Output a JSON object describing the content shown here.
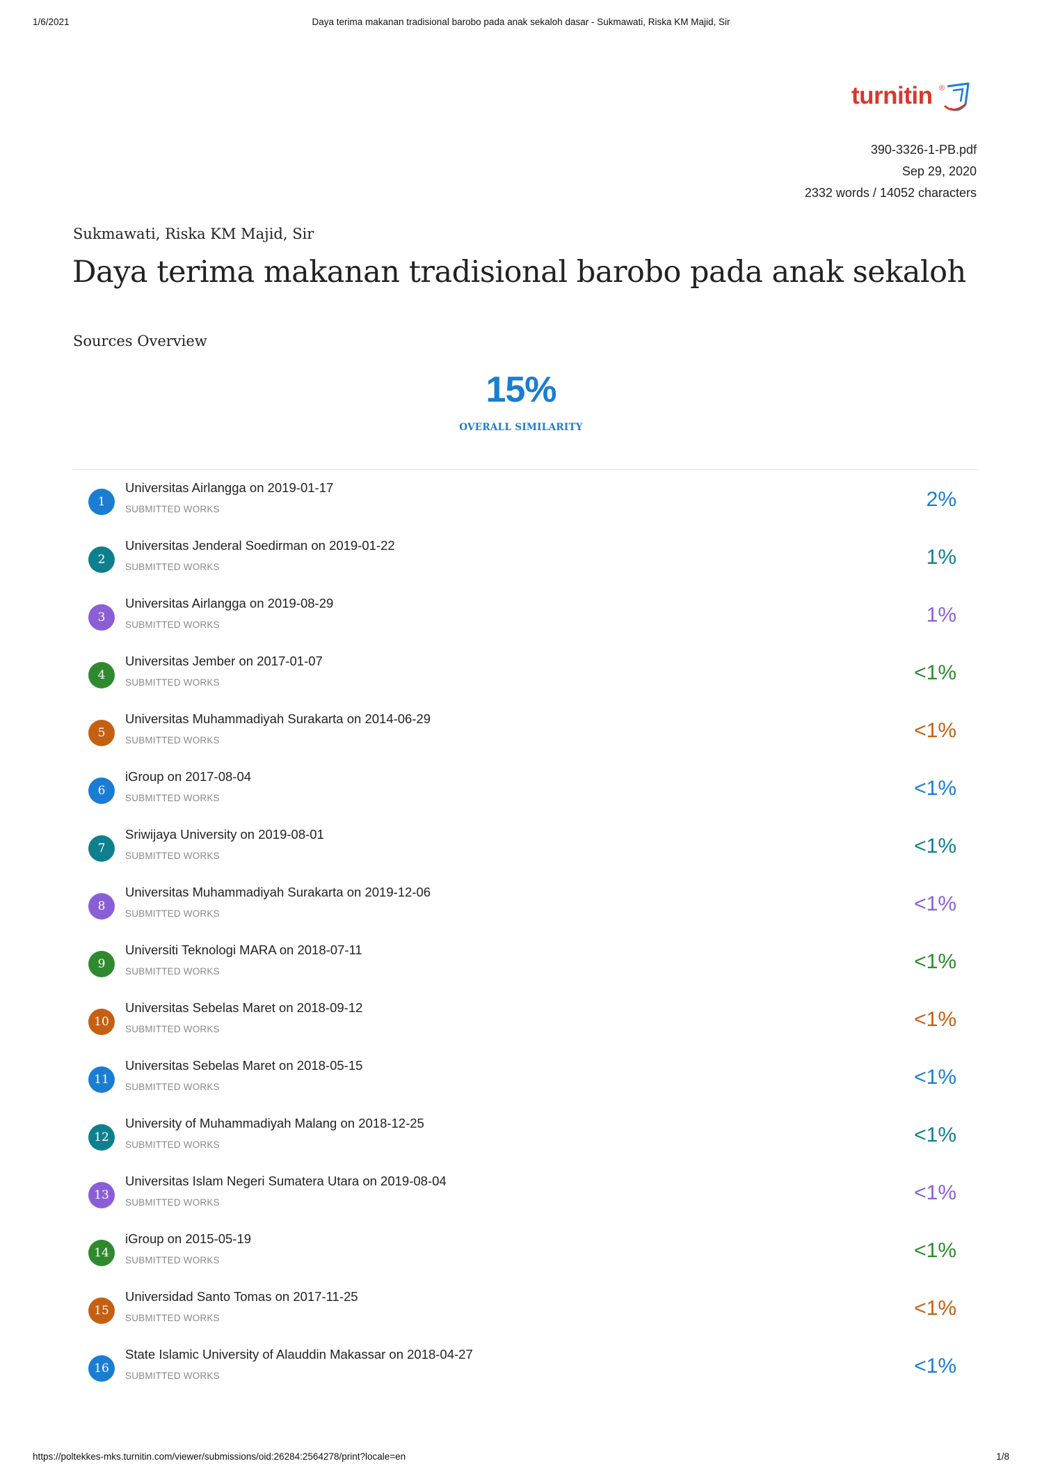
{
  "print_header": {
    "date": "1/6/2021",
    "title": "Daya terima makanan tradisional barobo pada anak sekaloh dasar - Sukmawati, Riska KM Majid, Sir"
  },
  "logo": {
    "text": "turnitin",
    "mark": "®"
  },
  "meta": {
    "filename": "390-3326-1-PB.pdf",
    "date": "Sep 29, 2020",
    "counts": "2332 words / 14052 characters"
  },
  "author": "Sukmawati, Riska KM Majid, Sir",
  "doc_title": "Daya terima makanan tradisional barobo pada anak sekaloh da...",
  "section_title": "Sources Overview",
  "overall": {
    "percent": "15%",
    "label": "OVERALL SIMILARITY",
    "color": "#1a7dd1"
  },
  "colors": {
    "blue": "#1a7dd1",
    "teal": "#0e7f8f",
    "purple": "#8a5fd6",
    "green": "#2f8a2f",
    "orange": "#c55f12",
    "logo_red": "#d9382c"
  },
  "sources": [
    {
      "num": "1",
      "name": "Universitas Airlangga on 2019-01-17",
      "type": "SUBMITTED WORKS",
      "percent": "2%",
      "color": "#1a7dd1"
    },
    {
      "num": "2",
      "name": "Universitas Jenderal Soedirman on 2019-01-22",
      "type": "SUBMITTED WORKS",
      "percent": "1%",
      "color": "#0e7f8f"
    },
    {
      "num": "3",
      "name": "Universitas Airlangga on 2019-08-29",
      "type": "SUBMITTED WORKS",
      "percent": "1%",
      "color": "#8a5fd6"
    },
    {
      "num": "4",
      "name": "Universitas Jember on 2017-01-07",
      "type": "SUBMITTED WORKS",
      "percent": "<1%",
      "color": "#2f8a2f"
    },
    {
      "num": "5",
      "name": "Universitas Muhammadiyah Surakarta on 2014-06-29",
      "type": "SUBMITTED WORKS",
      "percent": "<1%",
      "color": "#c55f12"
    },
    {
      "num": "6",
      "name": "iGroup on 2017-08-04",
      "type": "SUBMITTED WORKS",
      "percent": "<1%",
      "color": "#1a7dd1"
    },
    {
      "num": "7",
      "name": "Sriwijaya University on 2019-08-01",
      "type": "SUBMITTED WORKS",
      "percent": "<1%",
      "color": "#0e7f8f"
    },
    {
      "num": "8",
      "name": "Universitas Muhammadiyah Surakarta on 2019-12-06",
      "type": "SUBMITTED WORKS",
      "percent": "<1%",
      "color": "#8a5fd6"
    },
    {
      "num": "9",
      "name": "Universiti Teknologi MARA on 2018-07-11",
      "type": "SUBMITTED WORKS",
      "percent": "<1%",
      "color": "#2f8a2f"
    },
    {
      "num": "10",
      "name": "Universitas Sebelas Maret on 2018-09-12",
      "type": "SUBMITTED WORKS",
      "percent": "<1%",
      "color": "#c55f12"
    },
    {
      "num": "11",
      "name": "Universitas Sebelas Maret on 2018-05-15",
      "type": "SUBMITTED WORKS",
      "percent": "<1%",
      "color": "#1a7dd1"
    },
    {
      "num": "12",
      "name": "University of Muhammadiyah Malang on 2018-12-25",
      "type": "SUBMITTED WORKS",
      "percent": "<1%",
      "color": "#0e7f8f"
    },
    {
      "num": "13",
      "name": "Universitas Islam Negeri Sumatera Utara on 2019-08-04",
      "type": "SUBMITTED WORKS",
      "percent": "<1%",
      "color": "#8a5fd6"
    },
    {
      "num": "14",
      "name": "iGroup on 2015-05-19",
      "type": "SUBMITTED WORKS",
      "percent": "<1%",
      "color": "#2f8a2f"
    },
    {
      "num": "15",
      "name": "Universidad Santo Tomas on 2017-11-25",
      "type": "SUBMITTED WORKS",
      "percent": "<1%",
      "color": "#c55f12"
    },
    {
      "num": "16",
      "name": "State Islamic University of Alauddin Makassar on 2018-04-27",
      "type": "SUBMITTED WORKS",
      "percent": "<1%",
      "color": "#1a7dd1"
    }
  ],
  "print_footer": {
    "url": "https://poltekkes-mks.turnitin.com/viewer/submissions/oid:26284:2564278/print?locale=en",
    "page": "1/8"
  }
}
